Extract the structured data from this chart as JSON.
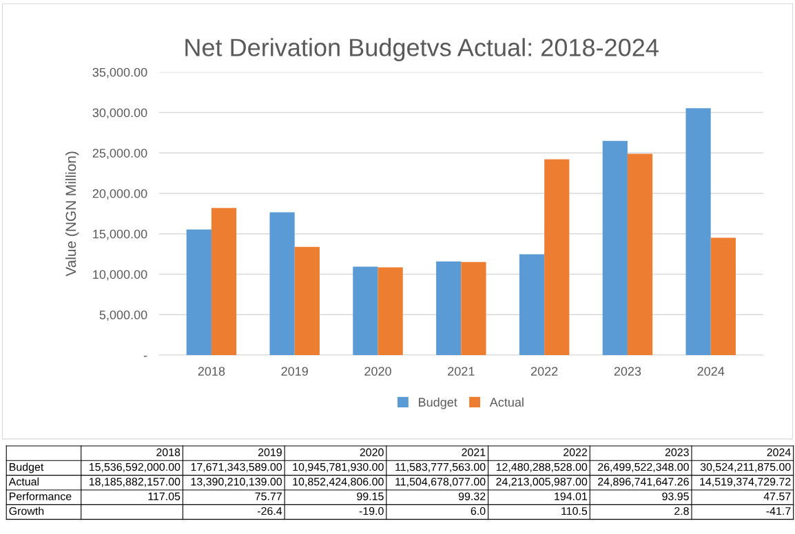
{
  "chart_data": {
    "type": "bar",
    "title": "Net Derivation Budgetvs Actual: 2018-2024",
    "ylabel": "Value (NGN Million)",
    "categories": [
      "2018",
      "2019",
      "2020",
      "2021",
      "2022",
      "2023",
      "2024"
    ],
    "series": [
      {
        "name": "Budget",
        "color": "#5b9bd5",
        "values": [
          15536.592,
          17671.343589,
          10945.78193,
          11583.777563,
          12480.288528,
          26499.522348,
          30524.211875
        ]
      },
      {
        "name": "Actual",
        "color": "#ed7d31",
        "values": [
          18185.882157,
          13390.210139,
          10852.424806,
          11504.678077,
          24213.005987,
          24896.74164726,
          14519.37472972
        ]
      }
    ],
    "ylim": [
      0,
      35000
    ],
    "yticks": [
      {
        "value": 0,
        "label": "-"
      },
      {
        "value": 5000,
        "label": "5,000.00"
      },
      {
        "value": 10000,
        "label": "10,000.00"
      },
      {
        "value": 15000,
        "label": "15,000.00"
      },
      {
        "value": 20000,
        "label": "20,000.00"
      },
      {
        "value": 25000,
        "label": "25,000.00"
      },
      {
        "value": 30000,
        "label": "30,000.00"
      },
      {
        "value": 35000,
        "label": "35,000.00"
      }
    ],
    "grid": "y",
    "legend": "bottom",
    "annotations": [
      "Budget",
      "15,536,592,000.00",
      "17,671,343,589.00",
      "10,945,781,930.00",
      "11,583,777,563.00",
      "12,480,288,528.00",
      "26,499,522,348.00",
      "30,524,211,875.00",
      "Actual",
      "18,185,882,157.00",
      "13,390,210,139.00",
      "10,852,424,806.00",
      "11,504,678,077.00",
      "24,213,005,987.00",
      "24,896,741,647.26",
      "14,519,374,729.72",
      "Performance",
      "117.05",
      "75.77",
      "99.15",
      "99.32",
      "194.01",
      "93.95",
      "47.57",
      "Growth",
      null,
      "-26.4",
      "-19.0",
      "6.0",
      "110.5",
      "2.8",
      "-41.7"
    ]
  }
}
